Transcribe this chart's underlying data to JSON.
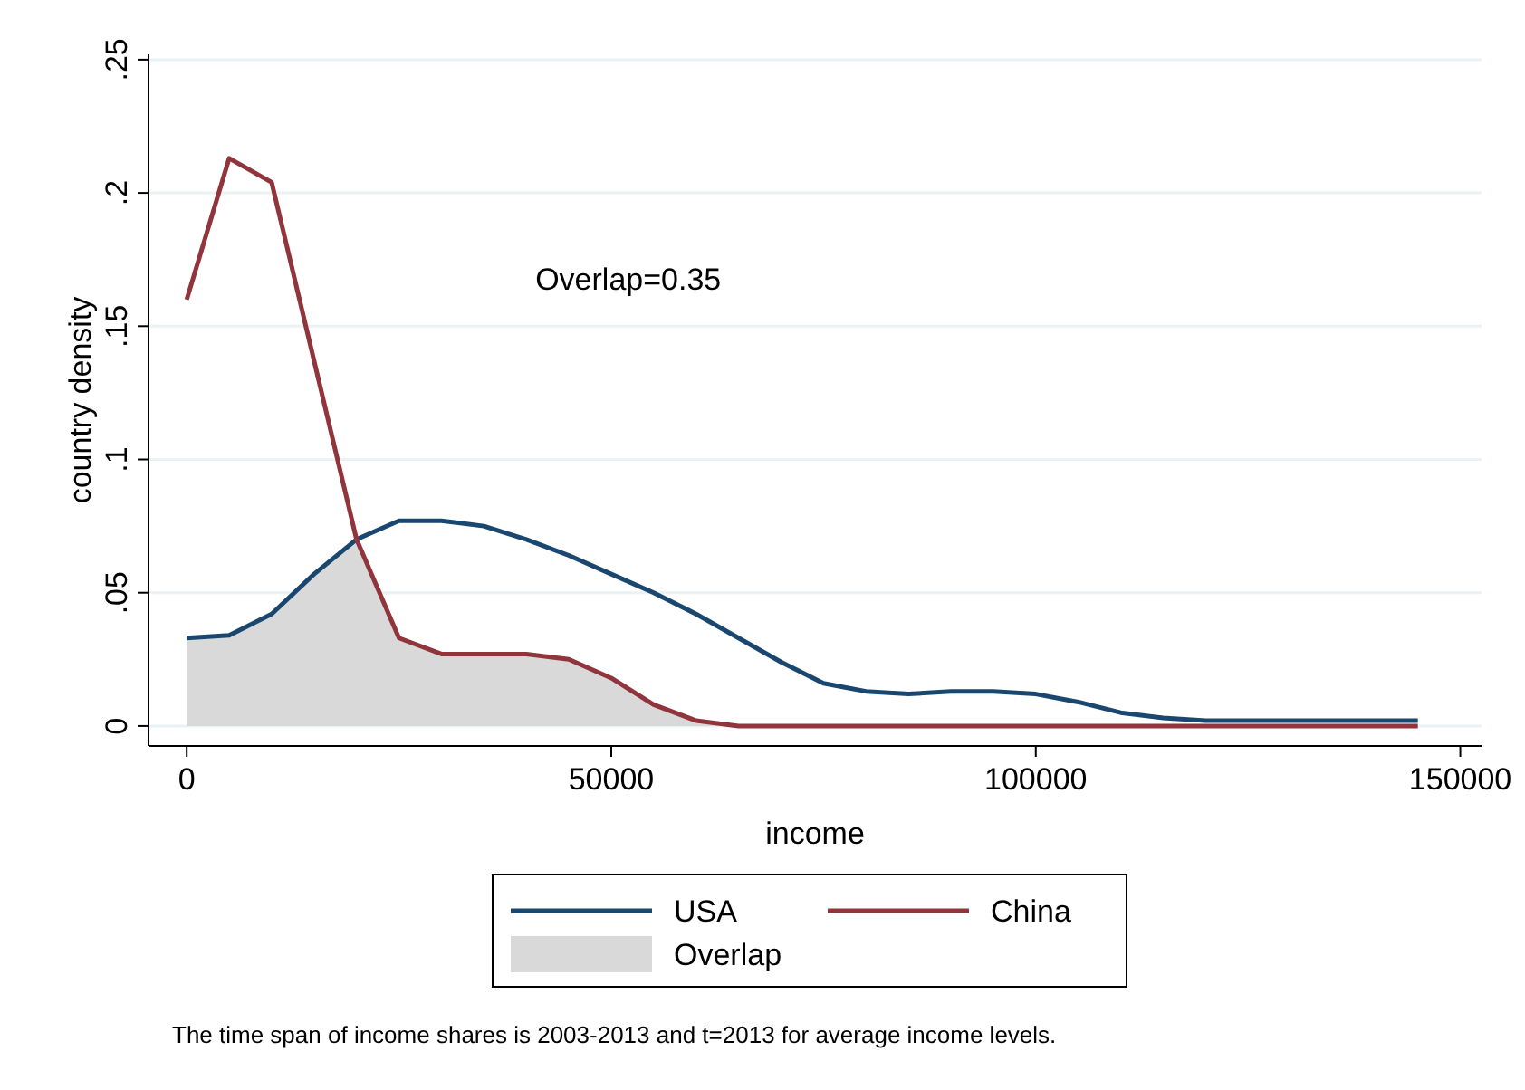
{
  "chart_data": {
    "type": "line",
    "xlabel": "income",
    "ylabel": "country density",
    "x": [
      0,
      5000,
      10000,
      15000,
      20000,
      25000,
      30000,
      35000,
      40000,
      45000,
      50000,
      55000,
      60000,
      65000,
      70000,
      75000,
      80000,
      85000,
      90000,
      95000,
      100000,
      105000,
      110000,
      115000,
      120000,
      125000,
      130000,
      135000,
      140000,
      145000
    ],
    "series": [
      {
        "name": "USA",
        "color": "#1a476f",
        "values": [
          0.033,
          0.034,
          0.042,
          0.057,
          0.07,
          0.077,
          0.077,
          0.075,
          0.07,
          0.064,
          0.057,
          0.05,
          0.042,
          0.033,
          0.024,
          0.016,
          0.013,
          0.012,
          0.013,
          0.013,
          0.012,
          0.009,
          0.005,
          0.003,
          0.002,
          0.002,
          0.002,
          0.002,
          0.002,
          0.002
        ]
      },
      {
        "name": "China",
        "color": "#90353b",
        "values": [
          0.16,
          0.213,
          0.204,
          0.137,
          0.07,
          0.033,
          0.027,
          0.027,
          0.027,
          0.025,
          0.018,
          0.008,
          0.002,
          0,
          0,
          0,
          0,
          0,
          0,
          0,
          0,
          0,
          0,
          0,
          0,
          0,
          0,
          0,
          0,
          0
        ]
      },
      {
        "name": "Overlap",
        "type": "area",
        "color": "#d9d9d9",
        "values": [
          0.033,
          0.034,
          0.042,
          0.057,
          0.07,
          0.033,
          0.027,
          0.027,
          0.027,
          0.025,
          0.018,
          0.008,
          0.002,
          0,
          0,
          0,
          0,
          0,
          0,
          0,
          0,
          0,
          0,
          0,
          0,
          0,
          0,
          0,
          0,
          0
        ]
      }
    ],
    "xlim": [
      -4500,
      152500
    ],
    "xticks": [
      0,
      50000,
      100000,
      150000
    ],
    "ylim": [
      -0.0075,
      0.252
    ],
    "yticks": [
      {
        "value": 0,
        "label": "0"
      },
      {
        "value": 0.05,
        "label": ".05"
      },
      {
        "value": 0.1,
        "label": ".1"
      },
      {
        "value": 0.15,
        "label": ".15"
      },
      {
        "value": 0.2,
        "label": ".2"
      },
      {
        "value": 0.25,
        "label": ".25"
      }
    ],
    "grid": "y",
    "legend": "bottom",
    "marker": "none",
    "line_style": "solid",
    "annotations": [
      "Overlap=0.35",
      "The time span of income shares is 2003-2013 and t=2013 for average income levels."
    ]
  }
}
